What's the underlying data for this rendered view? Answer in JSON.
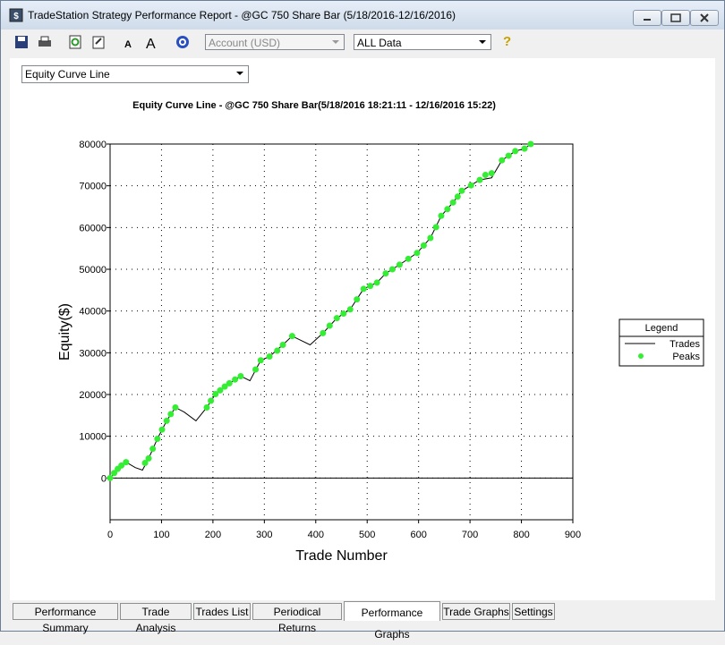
{
  "window": {
    "title": "TradeStation Strategy Performance Report - @GC 750 Share Bar (5/18/2016-12/16/2016)"
  },
  "toolbar": {
    "account": "Account (USD)",
    "range": "ALL Data",
    "help": "?"
  },
  "graph_select": "Equity Curve Line",
  "chart_data": {
    "type": "line",
    "title": "Equity Curve Line - @GC 750 Share Bar(5/18/2016 18:21:11 - 12/16/2016 15:22)",
    "x_label": "Trade Number",
    "y_label": "Equity($)",
    "xlim": [
      0,
      900
    ],
    "ylim": [
      -10000,
      80000
    ],
    "xticks": [
      0,
      100,
      200,
      300,
      400,
      500,
      600,
      700,
      800,
      900
    ],
    "yticks": [
      0,
      10000,
      20000,
      30000,
      40000,
      50000,
      60000,
      70000,
      80000
    ],
    "grid": true,
    "legend_title": "Legend",
    "series": [
      {
        "name": "Trades",
        "color": "#000000",
        "style": "line",
        "x": [
          0,
          22,
          31,
          49,
          63,
          75,
          92,
          110,
          127,
          144,
          167,
          188,
          205,
          232,
          254,
          272,
          293,
          310,
          336,
          354,
          389,
          414,
          441,
          467,
          493,
          519,
          536,
          563,
          597,
          623,
          644,
          667,
          684,
          719,
          742,
          762,
          788,
          806,
          818
        ],
        "values": [
          0,
          3000,
          3800,
          2500,
          1900,
          4700,
          9400,
          13700,
          16900,
          15800,
          13700,
          16900,
          20100,
          22700,
          24400,
          23300,
          28200,
          29100,
          31900,
          34000,
          31900,
          34700,
          38300,
          40400,
          45300,
          46800,
          49000,
          51100,
          53900,
          57500,
          62800,
          66000,
          68800,
          71400,
          71900,
          76100,
          78300,
          78900,
          80000
        ]
      },
      {
        "name": "Peaks",
        "color": "#33ee33",
        "style": "points",
        "x": [
          0,
          8,
          15,
          22,
          31,
          68,
          75,
          83,
          92,
          101,
          110,
          118,
          127,
          188,
          196,
          205,
          214,
          223,
          232,
          243,
          254,
          283,
          293,
          310,
          325,
          336,
          354,
          414,
          427,
          441,
          454,
          467,
          480,
          493,
          506,
          519,
          536,
          549,
          563,
          580,
          597,
          610,
          623,
          634,
          644,
          656,
          667,
          676,
          684,
          702,
          719,
          730,
          742,
          762,
          775,
          788,
          806,
          818
        ],
        "values": [
          0,
          1200,
          2200,
          3000,
          3800,
          3600,
          4700,
          7000,
          9400,
          11600,
          13700,
          15300,
          16900,
          16900,
          18500,
          20100,
          21000,
          21900,
          22700,
          23600,
          24400,
          26000,
          28200,
          29100,
          30500,
          31900,
          34000,
          34700,
          36500,
          38300,
          39400,
          40400,
          42800,
          45300,
          46000,
          46800,
          49000,
          50000,
          51100,
          52500,
          53900,
          55700,
          57500,
          60100,
          62800,
          64400,
          66000,
          67400,
          68800,
          70100,
          71400,
          72600,
          73000,
          76100,
          77200,
          78300,
          78900,
          80000
        ]
      }
    ]
  },
  "tabs": [
    "Performance Summary",
    "Trade Analysis",
    "Trades List",
    "Periodical Returns",
    "Performance Graphs",
    "Trade Graphs",
    "Settings"
  ]
}
